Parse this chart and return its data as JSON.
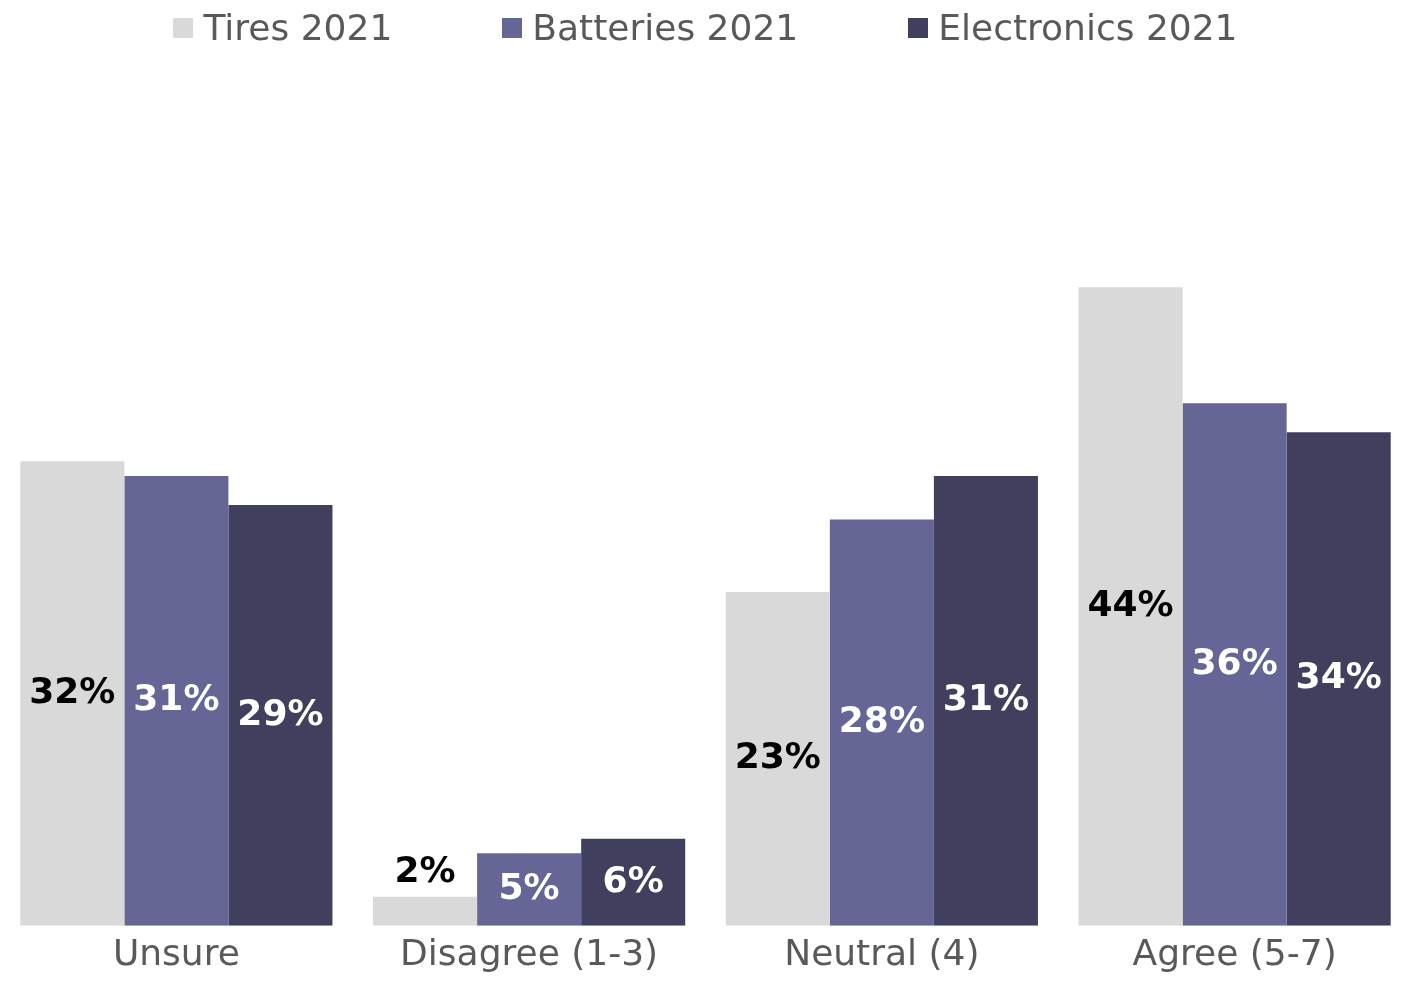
{
  "chart_data": {
    "type": "bar",
    "categories": [
      "Unsure",
      "Disagree (1-3)",
      "Neutral (4)",
      "Agree (5-7)"
    ],
    "series": [
      {
        "name": "Tires 2021",
        "color": "#d9d9d9",
        "values": [
          32,
          2,
          23,
          44
        ],
        "value_labels": [
          "32%",
          "2%",
          "23%",
          "44%"
        ]
      },
      {
        "name": "Batteries 2021",
        "color": "#656596",
        "values": [
          31,
          5,
          28,
          36
        ],
        "value_labels": [
          "31%",
          "5%",
          "28%",
          "36%"
        ]
      },
      {
        "name": "Electronics 2021",
        "color": "#40405e",
        "values": [
          29,
          6,
          31,
          34
        ],
        "value_labels": [
          "29%",
          "6%",
          "31%",
          "34%"
        ]
      }
    ],
    "legend": "top",
    "grid": false
  }
}
